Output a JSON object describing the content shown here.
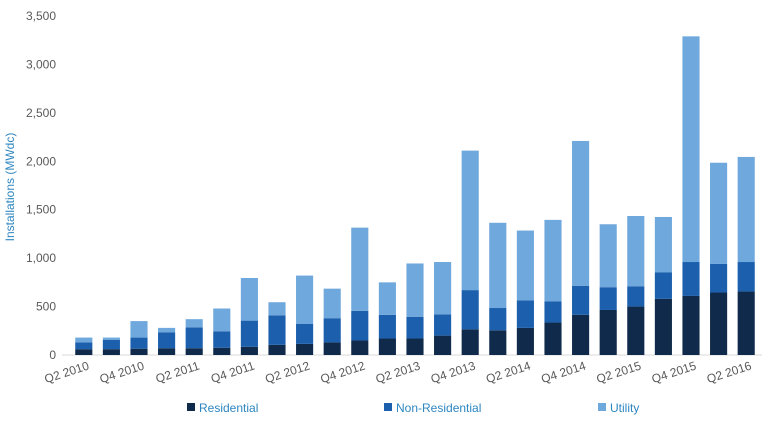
{
  "chart_data": {
    "type": "bar",
    "stacked": true,
    "ylabel": "Installations (MWdc)",
    "xlabel": "",
    "ylim": [
      0,
      3500
    ],
    "yticks": [
      0,
      500,
      1000,
      1500,
      2000,
      2500,
      3000,
      3500
    ],
    "ytick_labels": [
      "0",
      "500",
      "1,000",
      "1,500",
      "2,000",
      "2,500",
      "3,000",
      "3,500"
    ],
    "grid": false,
    "legend_position": "bottom",
    "categories": [
      "Q2 2010",
      "Q3 2010",
      "Q4 2010",
      "Q1 2011",
      "Q2 2011",
      "Q3 2011",
      "Q4 2011",
      "Q1 2012",
      "Q2 2012",
      "Q3 2012",
      "Q4 2012",
      "Q1 2013",
      "Q2 2013",
      "Q3 2013",
      "Q4 2013",
      "Q1 2014",
      "Q2 2014",
      "Q3 2014",
      "Q4 2014",
      "Q1 2015",
      "Q2 2015",
      "Q3 2015",
      "Q4 2015",
      "Q1 2016",
      "Q2 2016"
    ],
    "visible_xtick_labels": [
      "Q2 2010",
      "Q4 2010",
      "Q2 2011",
      "Q4 2011",
      "Q2 2012",
      "Q4 2012",
      "Q2 2013",
      "Q4 2013",
      "Q2 2014",
      "Q4 2014",
      "Q2 2015",
      "Q4 2015",
      "Q2 2016"
    ],
    "series": [
      {
        "name": "Residential",
        "color": "#0f2a4a",
        "values": [
          60,
          60,
          65,
          70,
          70,
          75,
          85,
          105,
          115,
          130,
          150,
          170,
          170,
          200,
          265,
          255,
          280,
          335,
          415,
          465,
          500,
          580,
          610,
          645,
          655
        ]
      },
      {
        "name": "Non-Residential",
        "color": "#1b5fad",
        "values": [
          70,
          95,
          115,
          165,
          215,
          170,
          270,
          305,
          205,
          250,
          305,
          245,
          225,
          220,
          405,
          230,
          285,
          220,
          300,
          235,
          210,
          275,
          350,
          295,
          305
        ]
      },
      {
        "name": "Utility",
        "color": "#6fa8dc",
        "values": [
          50,
          25,
          170,
          45,
          85,
          235,
          440,
          135,
          500,
          305,
          860,
          335,
          550,
          540,
          1440,
          880,
          720,
          840,
          1495,
          650,
          725,
          570,
          2330,
          1045,
          1085
        ]
      }
    ]
  }
}
